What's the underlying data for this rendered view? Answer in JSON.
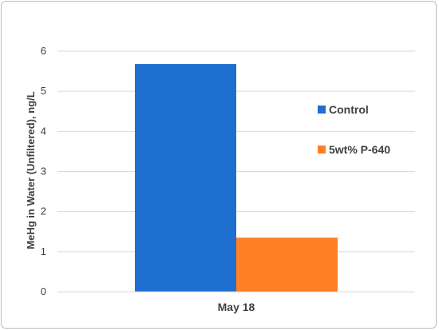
{
  "chart_data": {
    "type": "bar",
    "categories": [
      "May 18"
    ],
    "series": [
      {
        "name": "Control",
        "values": [
          5.68
        ],
        "color": "#1f6fd1"
      },
      {
        "name": "5wt% P-640",
        "values": [
          1.35
        ],
        "color": "#ff7f27"
      }
    ],
    "ylabel": "MeHg in Water (Unfiltered), ng/L",
    "xlabel": "",
    "ylim": [
      0,
      6
    ],
    "yticks": [
      0,
      1,
      2,
      3,
      4,
      5,
      6
    ],
    "grid": true,
    "legend_position": "right",
    "gridline_color": "#d9d9d9"
  }
}
